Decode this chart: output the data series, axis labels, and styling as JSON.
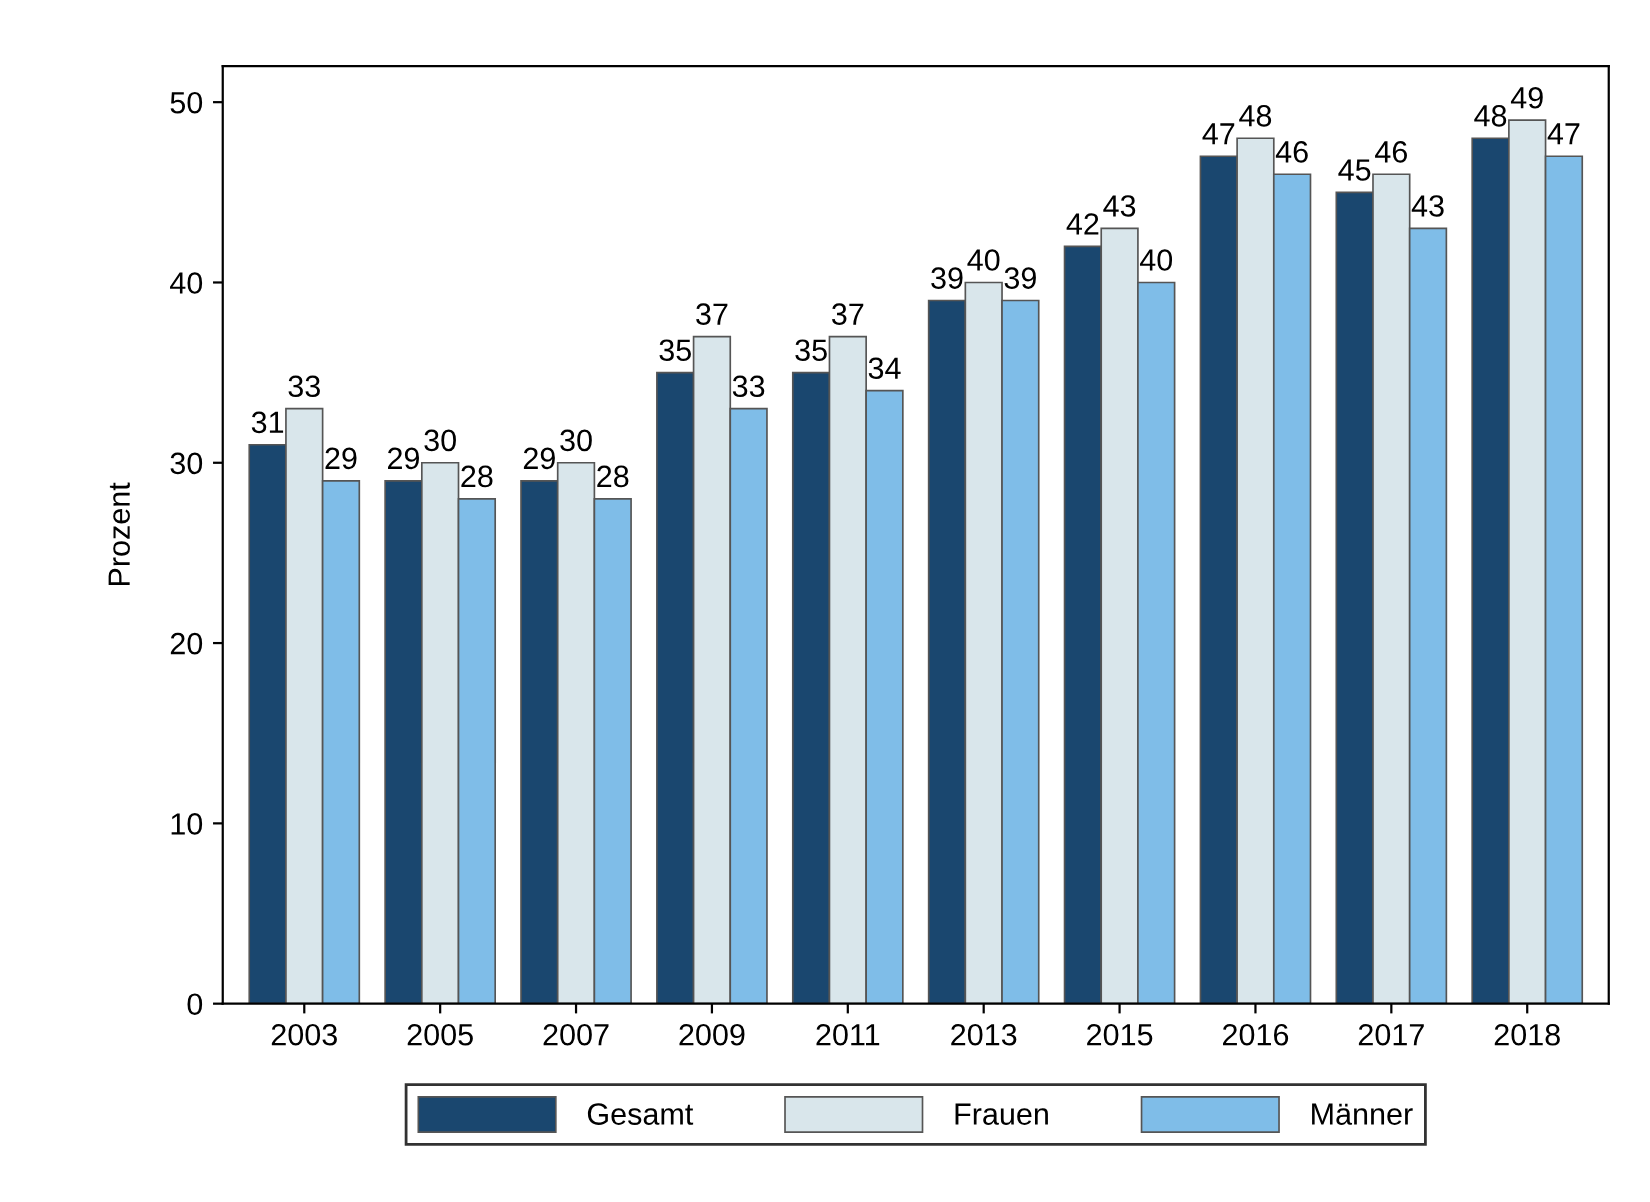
{
  "chart_data": {
    "type": "bar",
    "ylabel": "Prozent",
    "categories": [
      "2003",
      "2005",
      "2007",
      "2009",
      "2011",
      "2013",
      "2015",
      "2016",
      "2017",
      "2018"
    ],
    "series": [
      {
        "name": "Gesamt",
        "color": "#1a476f",
        "values": [
          31,
          29,
          29,
          35,
          35,
          39,
          42,
          47,
          45,
          48
        ]
      },
      {
        "name": "Frauen",
        "color": "#d9e6eb",
        "values": [
          33,
          30,
          30,
          37,
          37,
          40,
          43,
          48,
          46,
          49
        ]
      },
      {
        "name": "Männer",
        "color": "#7fbde8",
        "values": [
          29,
          28,
          28,
          33,
          34,
          39,
          40,
          46,
          43,
          47
        ]
      }
    ],
    "ylim": [
      0,
      52
    ],
    "yticks": [
      0,
      10,
      20,
      30,
      40,
      50
    ],
    "data_labels": true,
    "grid": false,
    "legend": "bottom"
  }
}
